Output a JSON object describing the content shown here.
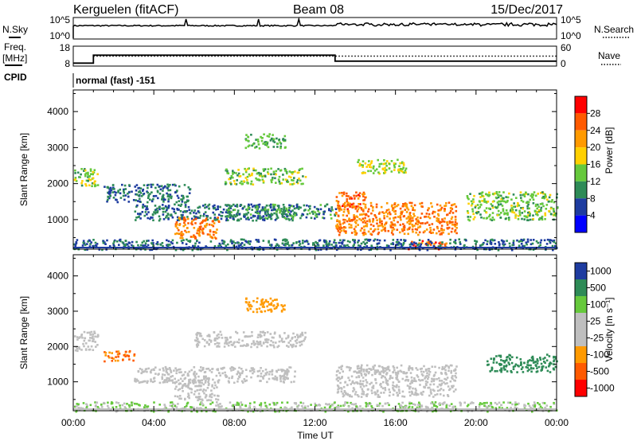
{
  "header": {
    "station": "Kerguelen (fitACF)",
    "beam": "Beam 08",
    "date": "15/Dec/2017"
  },
  "nsky_panel": {
    "left_label": "N.Sky",
    "left_ticks": [
      "10^5",
      "10^0"
    ],
    "right_label": "N.Search",
    "right_ticks": [
      "10^5",
      "10^0"
    ]
  },
  "freq_panel": {
    "left_label_line1": "Freq.",
    "left_label_line2": "[MHz]",
    "left_ticks": [
      "18",
      "8"
    ],
    "right_label": "Nave",
    "right_ticks": [
      "60",
      "0"
    ]
  },
  "cpid": {
    "label": "CPID",
    "mode_text": "normal (fast) -151"
  },
  "power_panel": {
    "ylabel": "Slant Range [km]",
    "cbar_label": "Power [dB]",
    "cbar_ticks": [
      "28",
      "24",
      "20",
      "16",
      "12",
      "8",
      "4"
    ],
    "cbar_colors": [
      "#ff0000",
      "#ff5a00",
      "#ff9a00",
      "#ffd000",
      "#66c93c",
      "#2e8b57",
      "#1e3ca0",
      "#0000ff"
    ]
  },
  "velocity_panel": {
    "ylabel": "Slant Range [km]",
    "cbar_label": "Velocity [m s⁻¹]",
    "cbar_ticks": [
      "1000",
      "500",
      "100",
      "25",
      "-25",
      "-100",
      "-500",
      "-1000"
    ],
    "cbar_colors": [
      "#1e3ca0",
      "#2e8b57",
      "#66c93c",
      "#bfbfbf",
      "#bfbfbf",
      "#ff9a00",
      "#ff5a00",
      "#ff0000"
    ]
  },
  "xaxis": {
    "label": "Time UT",
    "ticks": [
      "00:00",
      "04:00",
      "08:00",
      "12:00",
      "16:00",
      "20:00",
      "00:00"
    ]
  },
  "chart_data": [
    {
      "type": "line",
      "panel": "freq",
      "title": "",
      "ylabel": "Freq. [MHz]",
      "ylim": [
        8,
        18
      ],
      "series": [
        {
          "x_hours": [
            0,
            1.0,
            1.0,
            13.0,
            13.0,
            24
          ],
          "values": [
            9.5,
            9.5,
            13.5,
            13.5,
            10.5,
            10.5
          ]
        }
      ],
      "dotted_reference_nave": 13
    },
    {
      "type": "heatmap",
      "panel": "power",
      "ylabel": "Slant Range [km]",
      "ylim": [
        180,
        4600
      ],
      "yticks": [
        1000,
        2000,
        3000,
        4000
      ],
      "xlim_hours": [
        0,
        24
      ],
      "colorbar_range_dB": [
        0,
        32
      ],
      "regions": [
        {
          "t": [
            0.0,
            1.2
          ],
          "r": [
            1900,
            2450
          ],
          "power": 14
        },
        {
          "t": [
            1.5,
            5.8
          ],
          "r": [
            1500,
            2000
          ],
          "power": 8
        },
        {
          "t": [
            3.0,
            11.0
          ],
          "r": [
            1000,
            1450
          ],
          "power": 8
        },
        {
          "t": [
            5.0,
            7.2
          ],
          "r": [
            500,
            1100
          ],
          "power": 24
        },
        {
          "t": [
            7.5,
            13.0
          ],
          "r": [
            1050,
            1450
          ],
          "power": 10
        },
        {
          "t": [
            7.5,
            11.5
          ],
          "r": [
            2000,
            2450
          ],
          "power": 14
        },
        {
          "t": [
            8.5,
            10.5
          ],
          "r": [
            3000,
            3400
          ],
          "power": 12
        },
        {
          "t": [
            13.0,
            14.5
          ],
          "r": [
            1300,
            1800
          ],
          "power": 26
        },
        {
          "t": [
            13.0,
            19.0
          ],
          "r": [
            600,
            1500
          ],
          "power": 24
        },
        {
          "t": [
            14.0,
            16.5
          ],
          "r": [
            2300,
            2700
          ],
          "power": 16
        },
        {
          "t": [
            16.5,
            18.5
          ],
          "r": [
            200,
            450
          ],
          "power": 26
        },
        {
          "t": [
            19.5,
            24.0
          ],
          "r": [
            1000,
            1800
          ],
          "power": 14
        },
        {
          "t": [
            0.0,
            24.0
          ],
          "r": [
            180,
            480
          ],
          "power": 8
        }
      ]
    },
    {
      "type": "heatmap",
      "panel": "velocity",
      "ylabel": "Slant Range [km]",
      "ylim": [
        180,
        4600
      ],
      "yticks": [
        1000,
        2000,
        3000,
        4000
      ],
      "xlim_hours": [
        0,
        24
      ],
      "colorbar_range_ms": [
        -1000,
        1000
      ],
      "regions": [
        {
          "t": [
            0.0,
            1.2
          ],
          "r": [
            1900,
            2450
          ],
          "velocity": 0
        },
        {
          "t": [
            1.5,
            3.0
          ],
          "r": [
            1600,
            1900
          ],
          "velocity": -300
        },
        {
          "t": [
            3.0,
            11.0
          ],
          "r": [
            1000,
            1450
          ],
          "velocity": 0
        },
        {
          "t": [
            5.0,
            7.2
          ],
          "r": [
            500,
            1100
          ],
          "velocity": 0
        },
        {
          "t": [
            6.0,
            11.5
          ],
          "r": [
            2000,
            2450
          ],
          "velocity": 0
        },
        {
          "t": [
            8.5,
            10.5
          ],
          "r": [
            3000,
            3400
          ],
          "velocity": -200
        },
        {
          "t": [
            13.0,
            19.0
          ],
          "r": [
            600,
            1500
          ],
          "velocity": 0
        },
        {
          "t": [
            16.0,
            17.0
          ],
          "r": [
            200,
            350
          ],
          "velocity": 200
        },
        {
          "t": [
            20.5,
            24.0
          ],
          "r": [
            1300,
            1800
          ],
          "velocity": 400
        },
        {
          "t": [
            0.0,
            24.0
          ],
          "r": [
            180,
            450
          ],
          "velocity": 60
        }
      ]
    }
  ]
}
